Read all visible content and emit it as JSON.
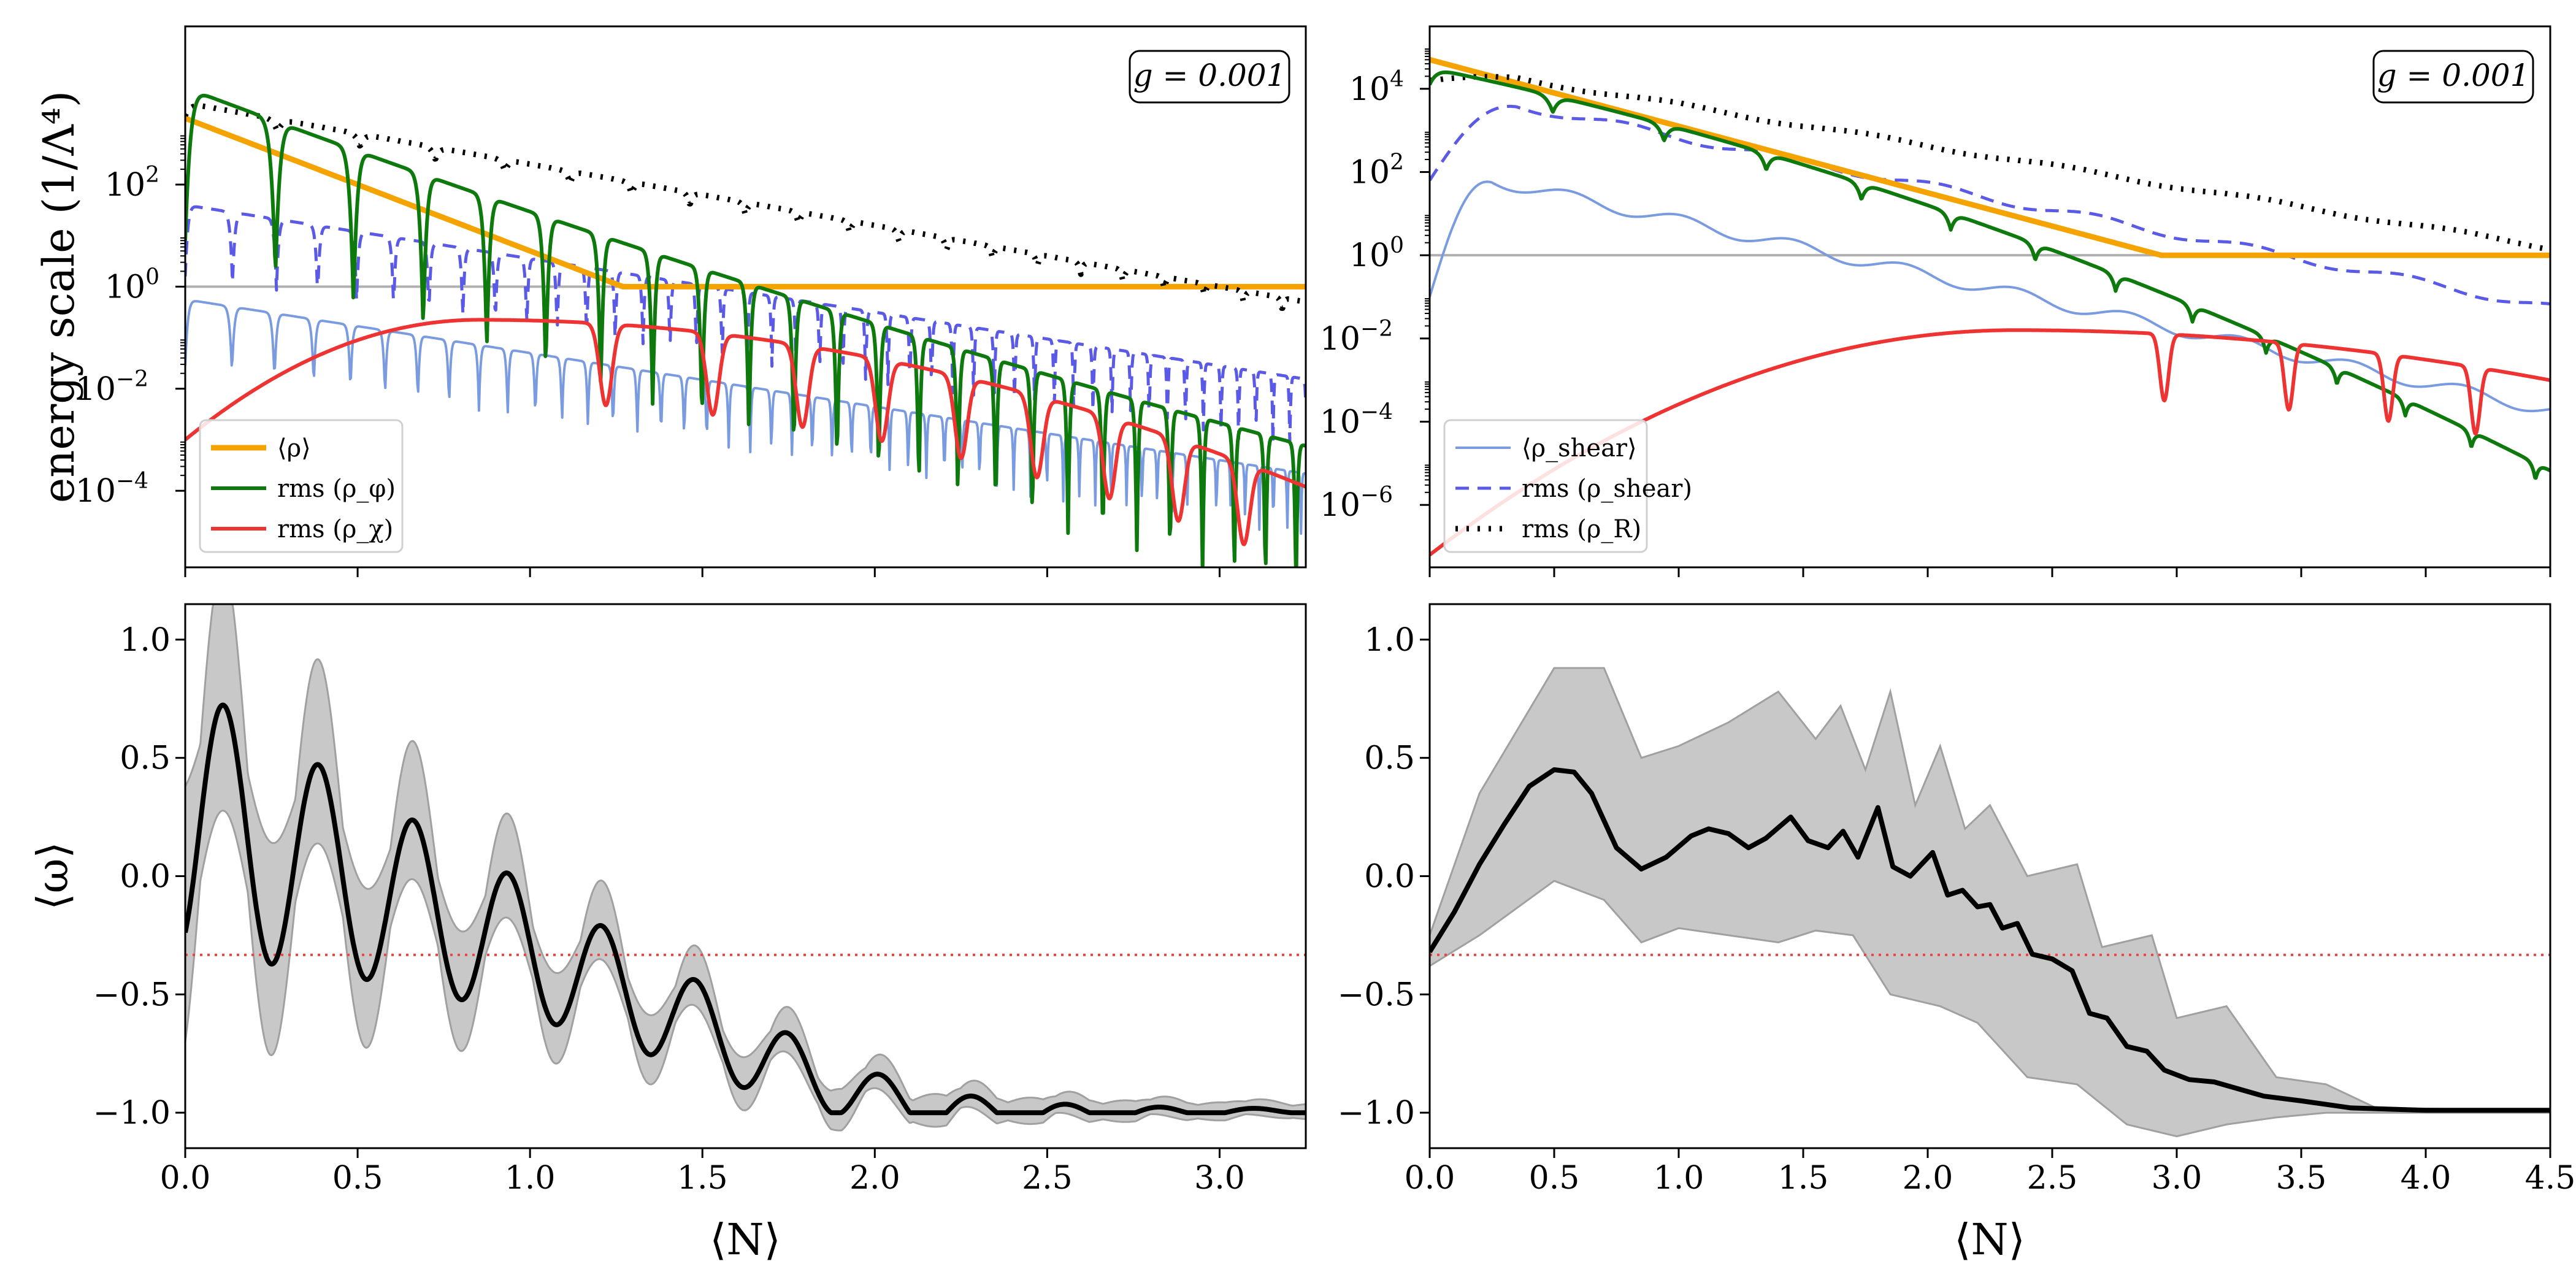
{
  "chart_data": [
    {
      "id": "top-left",
      "type": "line",
      "y_scale": "log",
      "ylabel": "energy scale  (1/Λ⁴)",
      "xlim": [
        0,
        3.25
      ],
      "ylim_log10": [
        -5.5,
        5.1
      ],
      "yticks": [
        {
          "value_log10": 2,
          "base": "10",
          "exp": "2"
        },
        {
          "value_log10": 0,
          "base": "10",
          "exp": "0"
        },
        {
          "value_log10": -2,
          "base": "10",
          "exp": "−2"
        },
        {
          "value_log10": -4,
          "base": "10",
          "exp": "−4"
        }
      ],
      "annotation": {
        "text": "g = 0.001",
        "position": "top-right"
      },
      "legend": {
        "position": "bottom-left",
        "entries": [
          {
            "label": "⟨ρ⟩",
            "series": "rho_mean"
          },
          {
            "label": "rms (ρ_φ)",
            "series": "rms_rho_phi"
          },
          {
            "label": "rms (ρ_χ)",
            "series": "rms_rho_chi"
          }
        ]
      },
      "reference_line": {
        "y_log10": 0,
        "color": "#b0b0b0"
      },
      "series": [
        {
          "key": "rho_mean",
          "name": "⟨ρ⟩",
          "color": "#f5a300",
          "style": "solid",
          "width": 9,
          "model": {
            "kind": "decay",
            "y0": 3.3,
            "k": 2.6,
            "floor": 0.0
          }
        },
        {
          "key": "rms_rho_phi",
          "name": "rms (ρ_φ)",
          "color": "#0e7a0e",
          "style": "solid",
          "width": 6,
          "model": {
            "kind": "osc_decay",
            "a": 3.9,
            "b": 2.55,
            "c": 0.12,
            "freq": 11.0,
            "growth": 0.35,
            "depth": 3.0
          }
        },
        {
          "key": "rms_rho_chi",
          "name": "rms (ρ_χ)",
          "color": "#ee3333",
          "style": "solid",
          "width": 6,
          "model": {
            "kind": "bump_osc",
            "start": -3.0,
            "peak": -0.65,
            "peak_x": 0.85,
            "width": 0.55,
            "tail": -4.1,
            "dips": [
              1.22,
              1.53,
              1.79,
              2.02,
              2.25,
              2.47,
              2.68,
              2.88,
              3.07
            ],
            "depth": 1.6
          }
        },
        {
          "key": "rho_shear_mean",
          "name": "⟨ρ_shear⟩",
          "color": "#7a9be0",
          "style": "solid",
          "width": 4,
          "model": {
            "kind": "osc_decay",
            "a": -0.25,
            "b": 1.05,
            "c": 0.0,
            "freq": 22.0,
            "growth": 0.4,
            "depth": 1.3
          }
        },
        {
          "key": "rms_rho_shear",
          "name": "rms (ρ_shear)",
          "color": "#5a5ae6",
          "style": "dashed",
          "width": 5,
          "model": {
            "kind": "osc_decay",
            "a": 1.6,
            "b": 1.05,
            "c": 0.0,
            "freq": 22.0,
            "growth": 0.3,
            "depth": 1.4
          }
        },
        {
          "key": "rms_rho_R",
          "name": "rms (ρ_R)",
          "color": "#000000",
          "style": "dotted",
          "width": 9,
          "model": {
            "kind": "osc_decay",
            "a": 3.6,
            "b": 1.2,
            "c": 0.0,
            "freq": 11.0,
            "growth": 0.25,
            "depth": 0.25
          }
        }
      ]
    },
    {
      "id": "top-right",
      "type": "line",
      "y_scale": "log",
      "ylabel": "",
      "xlim": [
        0,
        4.5
      ],
      "ylim_log10": [
        -7.5,
        5.5
      ],
      "yticks": [
        {
          "value_log10": 4,
          "base": "10",
          "exp": "4"
        },
        {
          "value_log10": 2,
          "base": "10",
          "exp": "2"
        },
        {
          "value_log10": 0,
          "base": "10",
          "exp": "0"
        },
        {
          "value_log10": -2,
          "base": "10",
          "exp": "−2"
        },
        {
          "value_log10": -4,
          "base": "10",
          "exp": "−4"
        },
        {
          "value_log10": -6,
          "base": "10",
          "exp": "−6"
        }
      ],
      "annotation": {
        "text": "g = 0.001",
        "position": "top-right"
      },
      "legend": {
        "position": "bottom-left",
        "entries": [
          {
            "label": "⟨ρ_shear⟩",
            "series": "rho_shear_mean"
          },
          {
            "label": "rms (ρ_shear)",
            "series": "rms_rho_shear"
          },
          {
            "label": "rms (ρ_R)",
            "series": "rms_rho_R"
          }
        ]
      },
      "reference_line": {
        "y_log10": 0,
        "color": "#b0b0b0"
      },
      "series": [
        {
          "key": "rho_mean",
          "name": "⟨ρ⟩",
          "color": "#f5a300",
          "style": "solid",
          "width": 9,
          "model": {
            "kind": "decay",
            "y0": 4.7,
            "k": 1.6,
            "floor": 0.0
          }
        },
        {
          "key": "rms_rho_phi",
          "name": "rms (ρ_φ)",
          "color": "#0e7a0e",
          "style": "solid",
          "width": 6,
          "model": {
            "kind": "osc_decay",
            "a": 4.5,
            "b": 1.25,
            "c": -0.2,
            "freq": 6.0,
            "growth": 0.12,
            "depth": 0.4
          }
        },
        {
          "key": "rms_rho_chi",
          "name": "rms (ρ_χ)",
          "color": "#ee3333",
          "style": "solid",
          "width": 6,
          "model": {
            "kind": "bump_osc",
            "start": -7.2,
            "peak": -1.8,
            "peak_x": 2.35,
            "width": 1.2,
            "tail": -4.3,
            "dips": [
              2.95,
              3.45,
              3.85,
              4.2
            ],
            "depth": 1.6
          }
        },
        {
          "key": "rho_shear_mean",
          "name": "⟨ρ_shear⟩",
          "color": "#7a9be0",
          "style": "solid",
          "width": 4,
          "model": {
            "kind": "bump_decay",
            "peak": 1.8,
            "peak_x": 0.25,
            "rate": 1.3,
            "start": -1.0,
            "wiggle": 0.15,
            "freq": 14.0
          }
        },
        {
          "key": "rms_rho_shear",
          "name": "rms (ρ_shear)",
          "color": "#5a5ae6",
          "style": "dashed",
          "width": 5,
          "model": {
            "kind": "bump_decay",
            "peak": 3.6,
            "peak_x": 0.35,
            "rate": 1.17,
            "start": 1.8,
            "wiggle": 0.1,
            "freq": 10.0
          }
        },
        {
          "key": "rms_rho_R",
          "name": "rms (ρ_R)",
          "color": "#000000",
          "style": "dotted",
          "width": 9,
          "model": {
            "kind": "bump_decay",
            "peak": 4.25,
            "peak_x": 0.35,
            "rate": 0.98,
            "start": 4.2,
            "wiggle": 0.05,
            "freq": 8.0
          }
        }
      ]
    },
    {
      "id": "bottom-left",
      "type": "line",
      "y_scale": "linear",
      "ylabel": "⟨ω⟩",
      "xlabel": "⟨N⟩",
      "xlim": [
        0,
        3.25
      ],
      "ylim": [
        -1.15,
        1.15
      ],
      "xticks": [
        {
          "value": 0.0,
          "label": "0.0"
        },
        {
          "value": 0.5,
          "label": "0.5"
        },
        {
          "value": 1.0,
          "label": "1.0"
        },
        {
          "value": 1.5,
          "label": "1.5"
        },
        {
          "value": 2.0,
          "label": "2.0"
        },
        {
          "value": 2.5,
          "label": "2.5"
        },
        {
          "value": 3.0,
          "label": "3.0"
        }
      ],
      "yticks": [
        {
          "value": 1.0,
          "label": "1.0"
        },
        {
          "value": 0.5,
          "label": "0.5"
        },
        {
          "value": 0.0,
          "label": "0.0"
        },
        {
          "value": -0.5,
          "label": "−0.5"
        },
        {
          "value": -1.0,
          "label": "−1.0"
        }
      ],
      "reference_line": {
        "y": -0.333,
        "color": "#ee4444",
        "style": "dotted"
      },
      "band": {
        "color": "#c8c8c8",
        "edge": "#a0a0a0",
        "model": {
          "kind": "omega_band",
          "amp0": 0.65,
          "decay": 1.1,
          "freq": 22.8
        }
      },
      "series": [
        {
          "key": "omega_mean",
          "name": "⟨ω⟩",
          "color": "#000000",
          "style": "solid",
          "width": 8,
          "model": {
            "kind": "omega_osc",
            "center0": 0.25,
            "amp0": 0.58,
            "freq": 22.8,
            "switch": 1.9,
            "end": -0.99
          }
        }
      ]
    },
    {
      "id": "bottom-right",
      "type": "line",
      "y_scale": "linear",
      "ylabel": "",
      "xlabel": "⟨N⟩",
      "xlim": [
        0,
        4.5
      ],
      "ylim": [
        -1.15,
        1.15
      ],
      "xticks": [
        {
          "value": 0.0,
          "label": "0.0"
        },
        {
          "value": 0.5,
          "label": "0.5"
        },
        {
          "value": 1.0,
          "label": "1.0"
        },
        {
          "value": 1.5,
          "label": "1.5"
        },
        {
          "value": 2.0,
          "label": "2.0"
        },
        {
          "value": 2.5,
          "label": "2.5"
        },
        {
          "value": 3.0,
          "label": "3.0"
        },
        {
          "value": 3.5,
          "label": "3.5"
        },
        {
          "value": 4.0,
          "label": "4.0"
        },
        {
          "value": 4.5,
          "label": "4.5"
        }
      ],
      "yticks": [
        {
          "value": 1.0,
          "label": "1.0"
        },
        {
          "value": 0.5,
          "label": "0.5"
        },
        {
          "value": 0.0,
          "label": "0.0"
        },
        {
          "value": -0.5,
          "label": "−0.5"
        },
        {
          "value": -1.0,
          "label": "−1.0"
        }
      ],
      "reference_line": {
        "y": -0.333,
        "color": "#ee4444",
        "style": "dotted"
      },
      "band": {
        "color": "#c8c8c8",
        "edge": "#a0a0a0",
        "upper": [
          [
            0.0,
            -0.25
          ],
          [
            0.2,
            0.35
          ],
          [
            0.5,
            0.88
          ],
          [
            0.7,
            0.88
          ],
          [
            0.85,
            0.5
          ],
          [
            1.0,
            0.55
          ],
          [
            1.2,
            0.65
          ],
          [
            1.4,
            0.78
          ],
          [
            1.55,
            0.58
          ],
          [
            1.65,
            0.72
          ],
          [
            1.75,
            0.45
          ],
          [
            1.85,
            0.78
          ],
          [
            1.95,
            0.3
          ],
          [
            2.05,
            0.55
          ],
          [
            2.15,
            0.2
          ],
          [
            2.25,
            0.3
          ],
          [
            2.4,
            0.0
          ],
          [
            2.6,
            0.05
          ],
          [
            2.7,
            -0.3
          ],
          [
            2.9,
            -0.25
          ],
          [
            3.0,
            -0.6
          ],
          [
            3.2,
            -0.55
          ],
          [
            3.4,
            -0.85
          ],
          [
            3.6,
            -0.88
          ],
          [
            3.8,
            -0.98
          ],
          [
            4.5,
            -0.99
          ]
        ],
        "lower": [
          [
            0.0,
            -0.38
          ],
          [
            0.2,
            -0.25
          ],
          [
            0.5,
            -0.02
          ],
          [
            0.7,
            -0.1
          ],
          [
            0.85,
            -0.28
          ],
          [
            1.0,
            -0.22
          ],
          [
            1.2,
            -0.25
          ],
          [
            1.4,
            -0.28
          ],
          [
            1.55,
            -0.23
          ],
          [
            1.7,
            -0.25
          ],
          [
            1.85,
            -0.5
          ],
          [
            2.05,
            -0.55
          ],
          [
            2.2,
            -0.62
          ],
          [
            2.4,
            -0.85
          ],
          [
            2.6,
            -0.88
          ],
          [
            2.8,
            -1.05
          ],
          [
            3.0,
            -1.1
          ],
          [
            3.2,
            -1.05
          ],
          [
            3.4,
            -1.02
          ],
          [
            3.6,
            -1.0
          ],
          [
            4.5,
            -1.0
          ]
        ]
      },
      "series": [
        {
          "key": "omega_mean",
          "name": "⟨ω⟩",
          "color": "#000000",
          "style": "solid",
          "width": 8,
          "points": [
            [
              0.0,
              -0.32
            ],
            [
              0.1,
              -0.15
            ],
            [
              0.2,
              0.05
            ],
            [
              0.3,
              0.22
            ],
            [
              0.4,
              0.38
            ],
            [
              0.5,
              0.45
            ],
            [
              0.58,
              0.44
            ],
            [
              0.65,
              0.35
            ],
            [
              0.75,
              0.12
            ],
            [
              0.85,
              0.03
            ],
            [
              0.95,
              0.08
            ],
            [
              1.05,
              0.17
            ],
            [
              1.12,
              0.2
            ],
            [
              1.2,
              0.18
            ],
            [
              1.28,
              0.12
            ],
            [
              1.35,
              0.16
            ],
            [
              1.45,
              0.25
            ],
            [
              1.52,
              0.15
            ],
            [
              1.6,
              0.12
            ],
            [
              1.66,
              0.19
            ],
            [
              1.72,
              0.08
            ],
            [
              1.8,
              0.29
            ],
            [
              1.86,
              0.04
            ],
            [
              1.93,
              0.0
            ],
            [
              2.02,
              0.1
            ],
            [
              2.08,
              -0.08
            ],
            [
              2.14,
              -0.06
            ],
            [
              2.2,
              -0.13
            ],
            [
              2.25,
              -0.12
            ],
            [
              2.3,
              -0.22
            ],
            [
              2.36,
              -0.2
            ],
            [
              2.42,
              -0.33
            ],
            [
              2.5,
              -0.35
            ],
            [
              2.58,
              -0.4
            ],
            [
              2.65,
              -0.58
            ],
            [
              2.72,
              -0.6
            ],
            [
              2.8,
              -0.72
            ],
            [
              2.88,
              -0.74
            ],
            [
              2.95,
              -0.82
            ],
            [
              3.05,
              -0.86
            ],
            [
              3.15,
              -0.87
            ],
            [
              3.25,
              -0.9
            ],
            [
              3.35,
              -0.93
            ],
            [
              3.5,
              -0.95
            ],
            [
              3.7,
              -0.98
            ],
            [
              4.0,
              -0.99
            ],
            [
              4.5,
              -0.99
            ]
          ]
        }
      ]
    }
  ]
}
